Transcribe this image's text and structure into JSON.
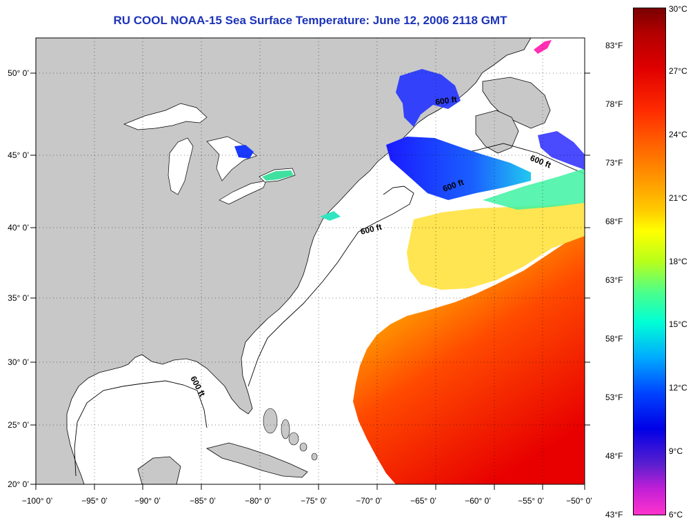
{
  "title": "RU COOL  NOAA-15  Sea Surface Temperature:  June 12, 2006 2118 GMT",
  "map": {
    "x_ticks": [
      "−100° 0’",
      "−95° 0’",
      "−90° 0’",
      "−85° 0’",
      "−80° 0’",
      "−75° 0’",
      "−70° 0’",
      "−65° 0’",
      "−60° 0’",
      "−55° 0’",
      "−50° 0’"
    ],
    "y_ticks": [
      "50° 0’",
      "45° 0’",
      "40° 0’",
      "35° 0’",
      "30° 0’",
      "25° 0’",
      "20° 0’"
    ],
    "isobath_labels": [
      "600 ft",
      "600 ft",
      "600 ft",
      "600 ft",
      "600 ft"
    ],
    "colors": {
      "land": "#c8c8c8",
      "ocean_no_data": "#ffffff",
      "title": "#1c33b8"
    }
  },
  "colorbar": {
    "celsius": [
      "30°C",
      "27°C",
      "24°C",
      "21°C",
      "18°C",
      "15°C",
      "12°C",
      "9°C",
      "6°C"
    ],
    "fahrenheit": [
      "83°F",
      "78°F",
      "73°F",
      "68°F",
      "63°F",
      "58°F",
      "53°F",
      "48°F",
      "43°F"
    ]
  }
}
